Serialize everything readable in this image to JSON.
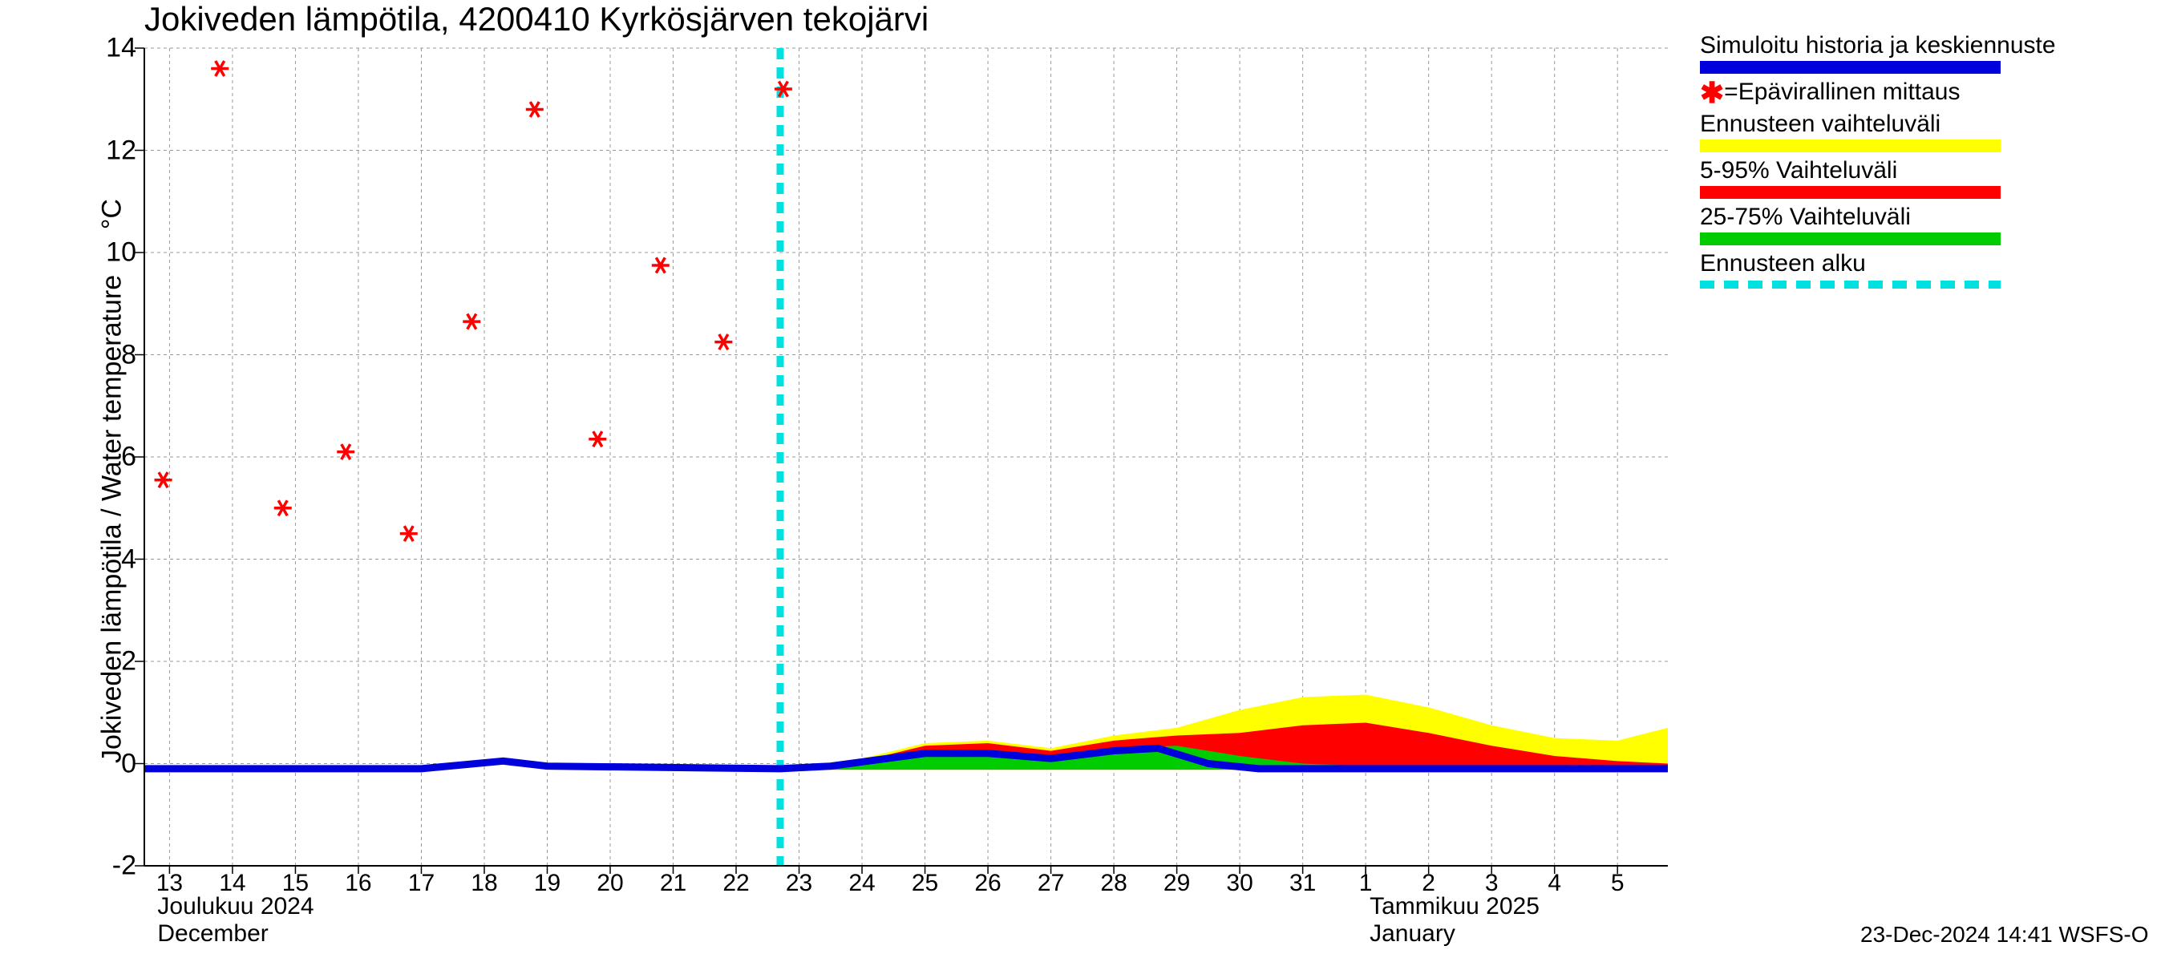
{
  "title": "Jokiveden lämpötila, 4200410 Kyrkösjärven tekojärvi",
  "y_axis_label_line1": "Jokiveden lämpötila / Water temperature",
  "y_axis_label_unit": "°C",
  "footer_ts": "23-Dec-2024 14:41 WSFS-O",
  "chart": {
    "type": "line-band",
    "ylim": [
      -2,
      14
    ],
    "ytick_step": 2,
    "y_ticks": [
      -2,
      0,
      2,
      4,
      6,
      8,
      10,
      12,
      14
    ],
    "xlim_days": [
      12.6,
      5.8
    ],
    "x_ticks_dec": [
      13,
      14,
      15,
      16,
      17,
      18,
      19,
      20,
      21,
      22,
      23,
      24,
      25,
      26,
      27,
      28,
      29,
      30,
      31
    ],
    "x_ticks_jan": [
      1,
      2,
      3,
      4,
      5
    ],
    "month1_label_fi": "Joulukuu  2024",
    "month1_label_en": "December",
    "month2_label_fi": "Tammikuu  2025",
    "month2_label_en": "January",
    "grid_color": "#999999",
    "background_color": "#ffffff",
    "forecast_start_day": 22.7,
    "forecast_start_color": "#00e0e0",
    "sim_color": "#0000dd",
    "marker_color": "#ff0000",
    "band_yellow": "#ffff00",
    "band_red": "#ff0000",
    "band_green": "#00cc00",
    "observations": [
      {
        "day": 12.9,
        "val": 5.55
      },
      {
        "day": 13.8,
        "val": 13.6
      },
      {
        "day": 14.8,
        "val": 5.0
      },
      {
        "day": 15.8,
        "val": 6.1
      },
      {
        "day": 16.8,
        "val": 4.5
      },
      {
        "day": 17.8,
        "val": 8.65
      },
      {
        "day": 18.8,
        "val": 12.8
      },
      {
        "day": 19.8,
        "val": 6.35
      },
      {
        "day": 20.8,
        "val": 9.75
      },
      {
        "day": 21.8,
        "val": 8.25
      },
      {
        "day": 22.75,
        "val": 13.2
      }
    ],
    "sim_line": [
      {
        "day": 12.6,
        "val": -0.1
      },
      {
        "day": 17.0,
        "val": -0.1
      },
      {
        "day": 18.3,
        "val": 0.05
      },
      {
        "day": 19.0,
        "val": -0.05
      },
      {
        "day": 22.7,
        "val": -0.1
      },
      {
        "day": 23.5,
        "val": -0.05
      },
      {
        "day": 25.0,
        "val": 0.2
      },
      {
        "day": 26.0,
        "val": 0.2
      },
      {
        "day": 27.0,
        "val": 0.1
      },
      {
        "day": 28.0,
        "val": 0.25
      },
      {
        "day": 28.7,
        "val": 0.3
      },
      {
        "day": 29.5,
        "val": 0.0
      },
      {
        "day": 30.3,
        "val": -0.1
      },
      {
        "day": 32.0,
        "val": -0.1
      },
      {
        "day": 36.8,
        "val": -0.1
      }
    ],
    "band_full": {
      "upper": [
        {
          "day": 22.7,
          "val": -0.1
        },
        {
          "day": 24.0,
          "val": 0.1
        },
        {
          "day": 25.0,
          "val": 0.4
        },
        {
          "day": 26.0,
          "val": 0.45
        },
        {
          "day": 27.0,
          "val": 0.3
        },
        {
          "day": 28.0,
          "val": 0.55
        },
        {
          "day": 29.0,
          "val": 0.7
        },
        {
          "day": 30.0,
          "val": 1.05
        },
        {
          "day": 31.0,
          "val": 1.3
        },
        {
          "day": 32.0,
          "val": 1.35
        },
        {
          "day": 33.0,
          "val": 1.1
        },
        {
          "day": 34.0,
          "val": 0.75
        },
        {
          "day": 35.0,
          "val": 0.5
        },
        {
          "day": 36.0,
          "val": 0.45
        },
        {
          "day": 36.8,
          "val": 0.7
        }
      ],
      "lower": [
        {
          "day": 22.7,
          "val": -0.12
        },
        {
          "day": 36.8,
          "val": -0.12
        }
      ]
    },
    "band_5_95": {
      "upper": [
        {
          "day": 22.7,
          "val": -0.1
        },
        {
          "day": 24.0,
          "val": 0.05
        },
        {
          "day": 25.0,
          "val": 0.35
        },
        {
          "day": 26.0,
          "val": 0.4
        },
        {
          "day": 27.0,
          "val": 0.25
        },
        {
          "day": 28.0,
          "val": 0.45
        },
        {
          "day": 29.0,
          "val": 0.55
        },
        {
          "day": 30.0,
          "val": 0.6
        },
        {
          "day": 31.0,
          "val": 0.75
        },
        {
          "day": 32.0,
          "val": 0.8
        },
        {
          "day": 33.0,
          "val": 0.6
        },
        {
          "day": 34.0,
          "val": 0.35
        },
        {
          "day": 35.0,
          "val": 0.15
        },
        {
          "day": 36.0,
          "val": 0.05
        },
        {
          "day": 36.8,
          "val": 0.0
        }
      ],
      "lower": [
        {
          "day": 22.7,
          "val": -0.12
        },
        {
          "day": 36.8,
          "val": -0.12
        }
      ]
    },
    "band_25_75": {
      "upper": [
        {
          "day": 22.7,
          "val": -0.1
        },
        {
          "day": 24.0,
          "val": 0.0
        },
        {
          "day": 25.0,
          "val": 0.25
        },
        {
          "day": 26.0,
          "val": 0.25
        },
        {
          "day": 27.0,
          "val": 0.12
        },
        {
          "day": 28.0,
          "val": 0.3
        },
        {
          "day": 29.0,
          "val": 0.35
        },
        {
          "day": 30.0,
          "val": 0.15
        },
        {
          "day": 31.0,
          "val": 0.0
        },
        {
          "day": 32.0,
          "val": -0.05
        },
        {
          "day": 33.0,
          "val": -0.08
        },
        {
          "day": 36.8,
          "val": -0.1
        }
      ],
      "lower": [
        {
          "day": 22.7,
          "val": -0.12
        },
        {
          "day": 36.8,
          "val": -0.12
        }
      ]
    }
  },
  "legend": {
    "sim_label": "Simuloitu historia ja keskiennuste",
    "obs_label": "=Epävirallinen mittaus",
    "full_band_label": "Ennusteen vaihteluväli",
    "band_5_95_label": "5-95% Vaihteluväli",
    "band_25_75_label": "25-75% Vaihteluväli",
    "forecast_start_label": "Ennusteen alku"
  }
}
